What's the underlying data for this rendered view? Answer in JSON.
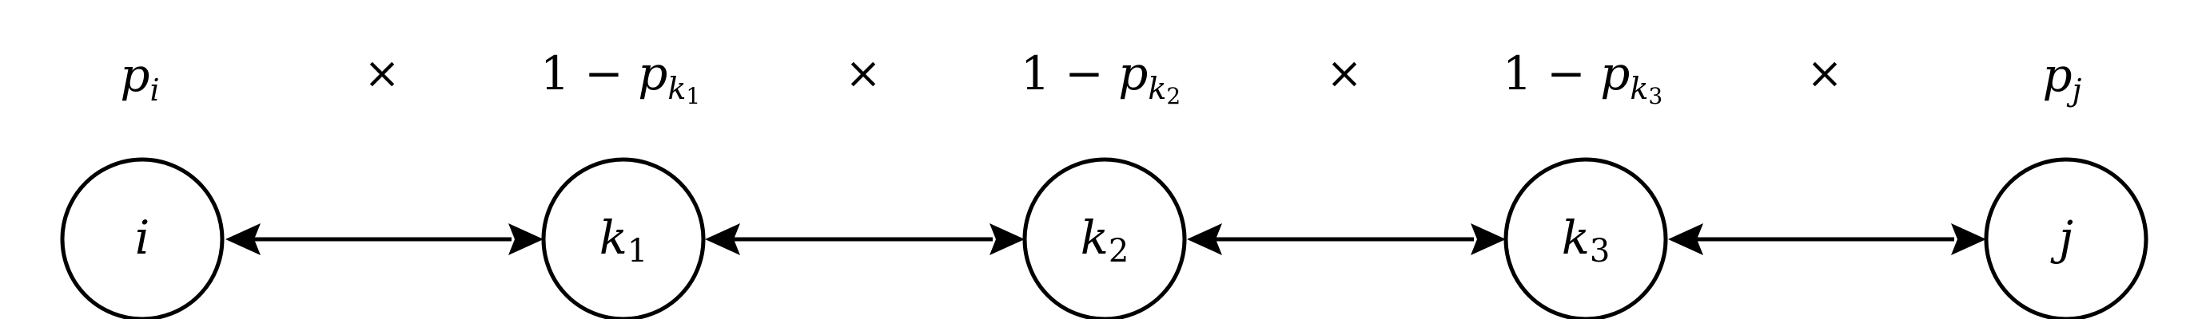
{
  "diagram": {
    "top_row": [
      {
        "id": "p_i",
        "base": "p",
        "sub": "i",
        "sub2": ""
      },
      {
        "id": "times_1",
        "symbol": "×"
      },
      {
        "id": "one_minus_p_k1",
        "prefix": "1 − ",
        "base": "p",
        "sub": "k",
        "sub2": "1"
      },
      {
        "id": "times_2",
        "symbol": "×"
      },
      {
        "id": "one_minus_p_k2",
        "prefix": "1 − ",
        "base": "p",
        "sub": "k",
        "sub2": "2"
      },
      {
        "id": "times_3",
        "symbol": "×"
      },
      {
        "id": "one_minus_p_k3",
        "prefix": "1 − ",
        "base": "p",
        "sub": "k",
        "sub2": "3"
      },
      {
        "id": "times_4",
        "symbol": "×"
      },
      {
        "id": "p_j",
        "base": "p",
        "sub": "j",
        "sub2": ""
      }
    ],
    "nodes": [
      {
        "id": "i",
        "label": "i",
        "sub": ""
      },
      {
        "id": "k1",
        "label": "k",
        "sub": "1"
      },
      {
        "id": "k2",
        "label": "k",
        "sub": "2"
      },
      {
        "id": "k3",
        "label": "k",
        "sub": "3"
      },
      {
        "id": "j",
        "label": "j",
        "sub": ""
      }
    ],
    "edges": [
      {
        "from": "i",
        "to": "k1",
        "direction": "bidirectional"
      },
      {
        "from": "k1",
        "to": "k2",
        "direction": "bidirectional"
      },
      {
        "from": "k2",
        "to": "k3",
        "direction": "bidirectional"
      },
      {
        "from": "k3",
        "to": "j",
        "direction": "bidirectional"
      }
    ]
  }
}
